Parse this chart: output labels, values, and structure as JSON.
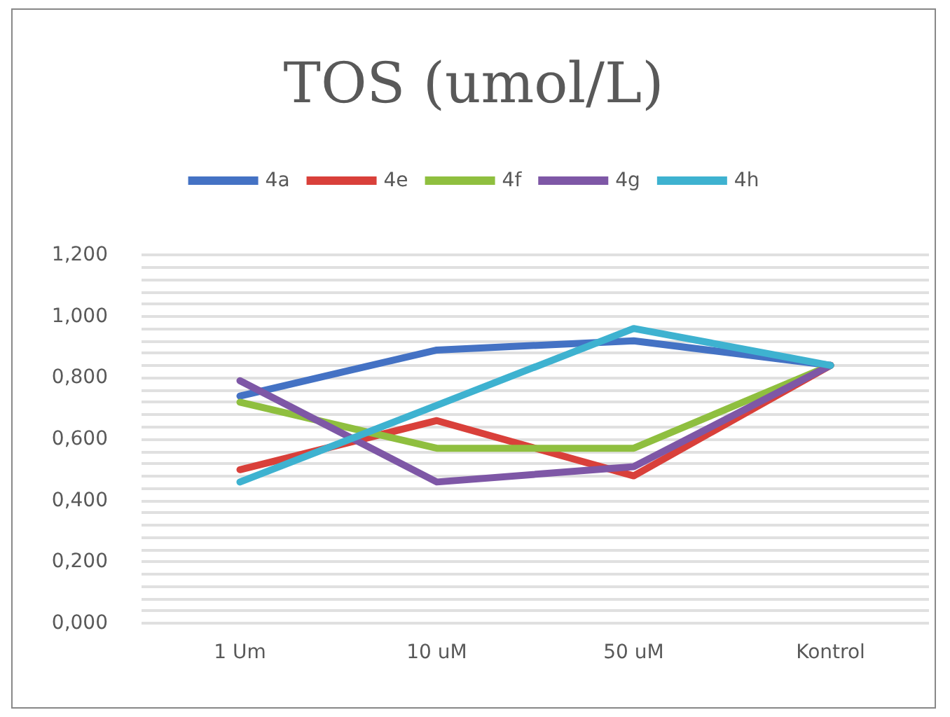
{
  "chart_data": {
    "type": "line",
    "title": "TOS (umol/L)",
    "categories": [
      "1 Um",
      "10 uM",
      "50 uM",
      "Kontrol"
    ],
    "series": [
      {
        "name": "4a",
        "color": "#4472c4",
        "values": [
          0.74,
          0.89,
          0.92,
          0.84
        ]
      },
      {
        "name": "4e",
        "color": "#d9403a",
        "values": [
          0.5,
          0.66,
          0.48,
          0.84
        ]
      },
      {
        "name": "4f",
        "color": "#8fbf3f",
        "values": [
          0.72,
          0.57,
          0.57,
          0.84
        ]
      },
      {
        "name": "4g",
        "color": "#7e57a6",
        "values": [
          0.79,
          0.46,
          0.51,
          0.84
        ]
      },
      {
        "name": "4h",
        "color": "#3eb2d0",
        "values": [
          0.46,
          0.71,
          0.96,
          0.84
        ]
      }
    ],
    "ylim": [
      0,
      1.2
    ],
    "yticks": [
      {
        "value": 0,
        "label": "0,000"
      },
      {
        "value": 0.04,
        "label": null
      },
      {
        "value": 0.08,
        "label": null
      },
      {
        "value": 0.12,
        "label": null
      },
      {
        "value": 0.16,
        "label": null
      },
      {
        "value": 0.2,
        "label": "0,200"
      },
      {
        "value": 0.24,
        "label": null
      },
      {
        "value": 0.28,
        "label": null
      },
      {
        "value": 0.32,
        "label": null
      },
      {
        "value": 0.36,
        "label": null
      },
      {
        "value": 0.4,
        "label": "0,400"
      },
      {
        "value": 0.44,
        "label": null
      },
      {
        "value": 0.48,
        "label": null
      },
      {
        "value": 0.52,
        "label": null
      },
      {
        "value": 0.56,
        "label": null
      },
      {
        "value": 0.6,
        "label": "0,600"
      },
      {
        "value": 0.64,
        "label": null
      },
      {
        "value": 0.68,
        "label": null
      },
      {
        "value": 0.72,
        "label": null
      },
      {
        "value": 0.76,
        "label": null
      },
      {
        "value": 0.8,
        "label": "0,800"
      },
      {
        "value": 0.84,
        "label": null
      },
      {
        "value": 0.88,
        "label": null
      },
      {
        "value": 0.92,
        "label": null
      },
      {
        "value": 0.96,
        "label": null
      },
      {
        "value": 1.0,
        "label": "1,000"
      },
      {
        "value": 1.04,
        "label": null
      },
      {
        "value": 1.08,
        "label": null
      },
      {
        "value": 1.12,
        "label": null
      },
      {
        "value": 1.16,
        "label": null
      },
      {
        "value": 1.2,
        "label": "1,200"
      }
    ],
    "grid": "y",
    "legend": "top",
    "marker": "none",
    "line_style": "solid"
  }
}
